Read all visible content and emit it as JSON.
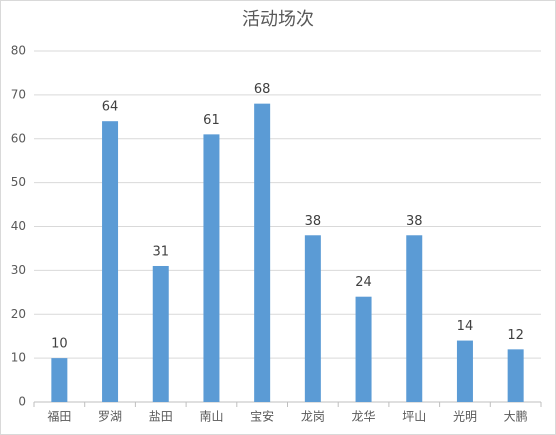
{
  "chart_data": {
    "type": "bar",
    "title": "活动场次",
    "categories": [
      "福田",
      "罗湖",
      "盐田",
      "南山",
      "宝安",
      "龙岗",
      "龙华",
      "坪山",
      "光明",
      "大鹏"
    ],
    "values": [
      10,
      64,
      31,
      61,
      68,
      38,
      24,
      38,
      14,
      12
    ],
    "color": "#5b9bd5",
    "ylim": [
      0,
      80
    ],
    "yticks": [
      0,
      10,
      20,
      30,
      40,
      50,
      60,
      70,
      80
    ],
    "grid": true
  }
}
